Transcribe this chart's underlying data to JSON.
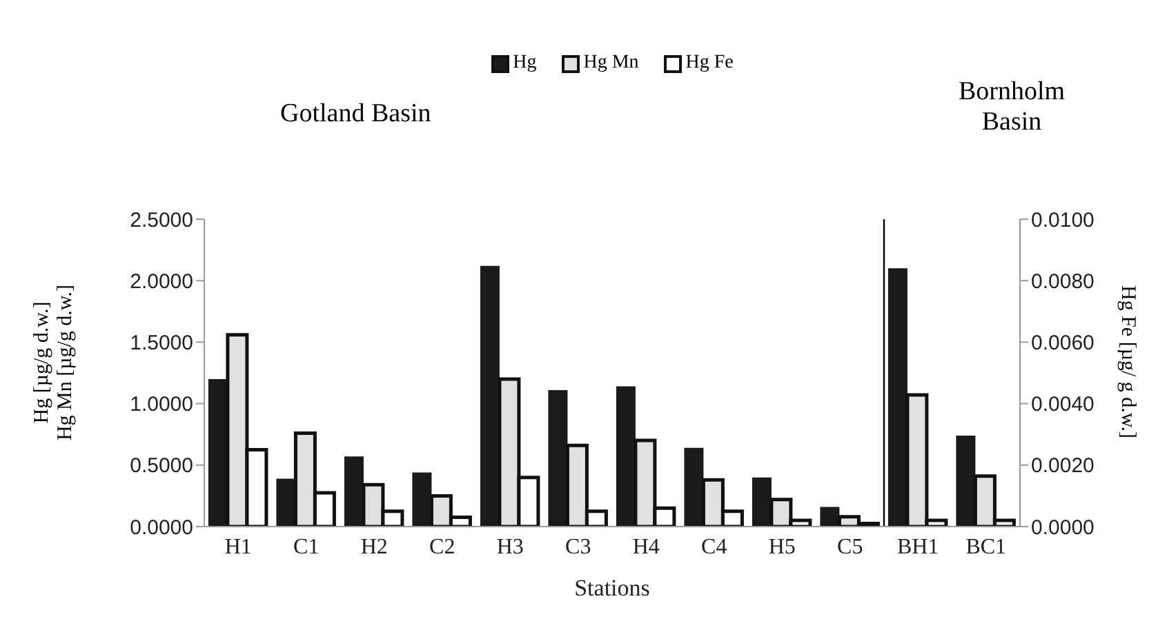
{
  "chart_data": {
    "type": "bar",
    "xlabel": "Stations",
    "ylabel": "Hg [µg/g d.w.]\nHg Mn [µg/g d.w.]",
    "y2label": "Hg Fe [µg/ g d.w.]",
    "categories": [
      "H1",
      "C1",
      "H2",
      "C2",
      "H3",
      "C3",
      "H4",
      "C4",
      "H5",
      "C5",
      "BH1",
      "BC1"
    ],
    "series": [
      {
        "name": "Hg",
        "color": "#1a1a1a",
        "values": [
          1.2,
          0.39,
          0.57,
          0.44,
          2.12,
          1.11,
          1.14,
          0.64,
          0.4,
          0.16,
          2.1,
          0.74
        ]
      },
      {
        "name": "Hg Mn",
        "color": "#e0e0e0",
        "values": [
          1.56,
          0.76,
          0.34,
          0.25,
          1.2,
          0.66,
          0.7,
          0.38,
          0.22,
          0.08,
          1.07,
          0.41
        ]
      },
      {
        "name": "Hg Fe",
        "color": "#ffffff",
        "axis": "y2",
        "values": [
          0.0025,
          0.0011,
          0.0005,
          0.0003,
          0.0016,
          0.0005,
          0.0006,
          0.0005,
          0.0002,
          0.0001,
          0.0002,
          0.0002
        ]
      }
    ],
    "ylim": [
      0,
      2.5
    ],
    "yticks": [
      {
        "value": 0,
        "label": "0.0000"
      },
      {
        "value": 0.5,
        "label": "0.5000"
      },
      {
        "value": 1,
        "label": "1.0000"
      },
      {
        "value": 1.5,
        "label": "1.5000"
      },
      {
        "value": 2,
        "label": "2.0000"
      },
      {
        "value": 2.5,
        "label": "2.5000"
      }
    ],
    "y2lim": [
      0,
      0.01
    ],
    "y2ticks": [
      {
        "value": 0,
        "label": "0.0000"
      },
      {
        "value": 0.002,
        "label": "0.0020"
      },
      {
        "value": 0.004,
        "label": "0.0040"
      },
      {
        "value": 0.006,
        "label": "0.0060"
      },
      {
        "value": 0.008,
        "label": "0.0080"
      },
      {
        "value": 0.01,
        "label": "0.0100"
      }
    ],
    "annotations": [
      "Gotland Basin",
      "Bornholm Basin"
    ],
    "legend": "top"
  }
}
